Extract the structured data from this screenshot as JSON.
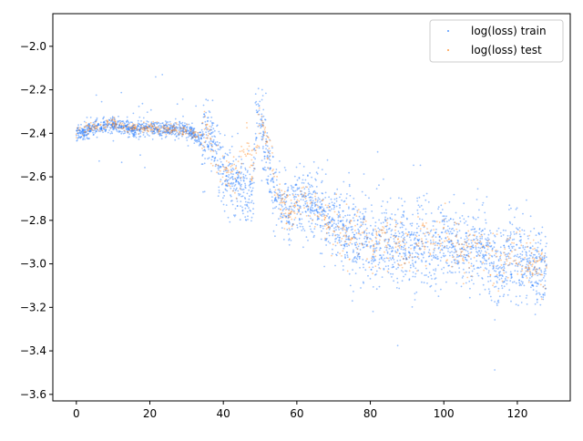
{
  "chart_data": {
    "type": "scatter",
    "title": "",
    "xlabel": "",
    "ylabel": "",
    "xlim": [
      -6.4,
      134.4
    ],
    "ylim": [
      -3.63,
      -1.85
    ],
    "x_ticks": [
      0,
      20,
      40,
      60,
      80,
      100,
      120
    ],
    "y_ticks": [
      -3.6,
      -3.4,
      -3.2,
      -3.0,
      -2.8,
      -2.6,
      -2.4,
      -2.2,
      -2.0
    ],
    "legend_position": "upper-right",
    "grid": false,
    "series": [
      {
        "name": "log(loss) train",
        "color": "#1f77ff",
        "x": [
          0,
          2,
          4,
          6,
          8,
          10,
          12,
          14,
          16,
          18,
          20,
          22,
          24,
          26,
          28,
          30,
          32,
          34,
          36,
          38,
          40,
          42,
          44,
          46,
          48,
          49,
          50,
          51,
          52,
          54,
          56,
          58,
          60,
          62,
          64,
          66,
          68,
          70,
          72,
          74,
          76,
          78,
          80,
          82,
          84,
          86,
          88,
          90,
          92,
          94,
          96,
          98,
          100,
          102,
          104,
          106,
          108,
          110,
          112,
          114,
          116,
          118,
          120,
          122,
          124,
          126,
          128
        ],
        "y": [
          -2.4,
          -2.39,
          -2.38,
          -2.37,
          -2.37,
          -2.36,
          -2.37,
          -2.38,
          -2.38,
          -2.38,
          -2.37,
          -2.38,
          -2.38,
          -2.38,
          -2.38,
          -2.38,
          -2.41,
          -2.43,
          -2.42,
          -2.48,
          -2.58,
          -2.62,
          -2.64,
          -2.66,
          -2.68,
          -2.3,
          -2.35,
          -2.42,
          -2.5,
          -2.7,
          -2.72,
          -2.8,
          -2.68,
          -2.72,
          -2.7,
          -2.75,
          -2.8,
          -2.82,
          -2.84,
          -2.85,
          -2.88,
          -2.9,
          -2.93,
          -2.9,
          -2.88,
          -2.92,
          -2.9,
          -2.95,
          -2.93,
          -2.88,
          -2.92,
          -2.93,
          -2.85,
          -2.9,
          -2.93,
          -2.96,
          -2.9,
          -2.94,
          -2.97,
          -2.98,
          -3.0,
          -2.97,
          -2.98,
          -3.0,
          -3.02,
          -3.04,
          -3.02
        ]
      },
      {
        "name": "log(loss) test",
        "color": "#ff7f0e",
        "x": [
          0,
          2,
          4,
          6,
          8,
          10,
          12,
          14,
          16,
          18,
          20,
          22,
          24,
          26,
          28,
          30,
          32,
          34,
          36,
          38,
          40,
          42,
          44,
          46,
          48,
          50,
          52,
          54,
          56,
          58,
          60,
          62,
          64,
          66,
          68,
          70,
          72,
          74,
          76,
          78,
          80,
          82,
          84,
          86,
          88,
          90,
          92,
          94,
          96,
          98,
          100,
          102,
          104,
          106,
          108,
          110,
          112,
          114,
          116,
          118,
          120,
          122,
          124,
          126,
          128
        ],
        "y": [
          -2.39,
          -2.38,
          -2.37,
          -2.36,
          -2.36,
          -2.35,
          -2.37,
          -2.37,
          -2.37,
          -2.38,
          -2.37,
          -2.38,
          -2.38,
          -2.38,
          -2.38,
          -2.38,
          -2.4,
          -2.42,
          -2.42,
          -2.5,
          -2.58,
          -2.6,
          -2.62,
          -2.44,
          -2.6,
          -2.36,
          -2.45,
          -2.62,
          -2.74,
          -2.78,
          -2.72,
          -2.7,
          -2.72,
          -2.76,
          -2.8,
          -2.84,
          -2.86,
          -2.88,
          -2.88,
          -2.9,
          -2.92,
          -2.9,
          -2.88,
          -2.92,
          -2.9,
          -2.95,
          -2.92,
          -2.88,
          -2.9,
          -2.92,
          -2.86,
          -2.92,
          -2.92,
          -2.96,
          -2.92,
          -2.94,
          -2.96,
          -2.98,
          -2.98,
          -2.97,
          -2.98,
          -2.99,
          -3.01,
          -3.02,
          -3.0
        ]
      }
    ]
  }
}
